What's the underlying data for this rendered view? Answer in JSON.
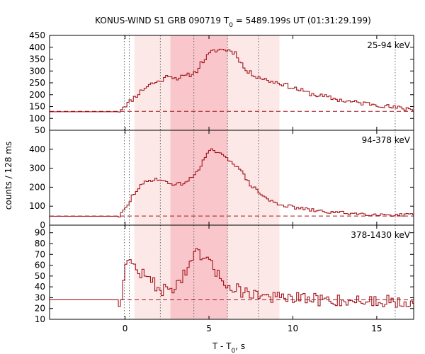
{
  "chart_data": {
    "type": "line",
    "title": "KONUS-WIND S1 GRB 090719 T",
    "title_sub": "0",
    "title_tail": " = 5489.199s UT (01:31:29.199)",
    "xlabel": "T - T",
    "xlabel_sub": "0",
    "xlabel_tail": ", s",
    "ylabel": "counts / 128 ms",
    "xlim": [
      -4.5,
      17.2
    ],
    "xticks": [
      0,
      5,
      10,
      15
    ],
    "bin_width_s": 0.128,
    "grid": false,
    "colors": {
      "line": "#a3141c",
      "background_dashed": "#a3141c",
      "shade_light": "#fde8e8",
      "shade_dark": "#f9c7cb",
      "vline": "#555555"
    },
    "shaded_intervals": [
      {
        "x": [
          0.55,
          9.2
        ],
        "level": "light"
      },
      {
        "x": [
          2.7,
          6.1
        ],
        "level": "dark"
      }
    ],
    "vertical_lines": [
      {
        "x": -0.05,
        "style": "dotted"
      },
      {
        "x": 0.25,
        "style": "dotted"
      },
      {
        "x": 2.1,
        "style": "dotted"
      },
      {
        "x": 4.1,
        "style": "dotted"
      },
      {
        "x": 6.1,
        "style": "dotted"
      },
      {
        "x": 7.95,
        "style": "dotted"
      },
      {
        "x": 16.1,
        "style": "dotted"
      }
    ],
    "panels": [
      {
        "name": "25-94 keV",
        "ylim": [
          50,
          450
        ],
        "yticks": [
          50,
          100,
          150,
          200,
          250,
          300,
          350,
          400,
          450
        ],
        "background": 130,
        "profile": [
          [
            -4.5,
            128
          ],
          [
            -0.4,
            128
          ],
          [
            -0.3,
            135
          ],
          [
            -0.1,
            150
          ],
          [
            0.2,
            165
          ],
          [
            0.5,
            185
          ],
          [
            0.8,
            205
          ],
          [
            1.1,
            225
          ],
          [
            1.5,
            245
          ],
          [
            2.0,
            255
          ],
          [
            2.4,
            270
          ],
          [
            2.6,
            285
          ],
          [
            3.0,
            270
          ],
          [
            3.5,
            275
          ],
          [
            3.9,
            285
          ],
          [
            4.1,
            290
          ],
          [
            4.3,
            305
          ],
          [
            4.5,
            330
          ],
          [
            4.7,
            345
          ],
          [
            5.0,
            370
          ],
          [
            5.3,
            385
          ],
          [
            5.6,
            390
          ],
          [
            6.0,
            390
          ],
          [
            6.3,
            385
          ],
          [
            6.6,
            375
          ],
          [
            7.2,
            300
          ],
          [
            7.8,
            280
          ],
          [
            8.5,
            260
          ],
          [
            9.2,
            250
          ],
          [
            10.0,
            230
          ],
          [
            11.0,
            205
          ],
          [
            12.0,
            190
          ],
          [
            13.0,
            175
          ],
          [
            14.0,
            165
          ],
          [
            15.0,
            160
          ],
          [
            16.0,
            145
          ],
          [
            17.2,
            140
          ]
        ],
        "noise": 10,
        "seed": 11
      },
      {
        "name": "94-378 keV",
        "ylim": [
          0,
          500
        ],
        "yticks": [
          0,
          100,
          200,
          300,
          400
        ],
        "background": 48,
        "profile": [
          [
            -4.5,
            47
          ],
          [
            -0.3,
            47
          ],
          [
            -0.1,
            75
          ],
          [
            0.2,
            105
          ],
          [
            0.4,
            150
          ],
          [
            0.8,
            195
          ],
          [
            1.2,
            225
          ],
          [
            1.6,
            240
          ],
          [
            2.0,
            245
          ],
          [
            2.4,
            225
          ],
          [
            3.0,
            215
          ],
          [
            3.5,
            220
          ],
          [
            4.0,
            250
          ],
          [
            4.4,
            300
          ],
          [
            4.8,
            360
          ],
          [
            5.1,
            395
          ],
          [
            5.4,
            390
          ],
          [
            5.8,
            365
          ],
          [
            6.3,
            340
          ],
          [
            6.8,
            300
          ],
          [
            7.4,
            220
          ],
          [
            8.0,
            170
          ],
          [
            8.6,
            130
          ],
          [
            9.2,
            110
          ],
          [
            10.0,
            95
          ],
          [
            11.0,
            80
          ],
          [
            12.0,
            70
          ],
          [
            13.0,
            65
          ],
          [
            14.0,
            60
          ],
          [
            15.0,
            57
          ],
          [
            16.0,
            55
          ],
          [
            17.2,
            50
          ]
        ],
        "noise": 9,
        "seed": 29
      },
      {
        "name": "378-1430 keV",
        "ylim": [
          10,
          97
        ],
        "yticks": [
          10,
          20,
          30,
          40,
          50,
          60,
          70,
          80,
          90
        ],
        "background": 28,
        "profile": [
          [
            -4.5,
            28
          ],
          [
            -0.4,
            28
          ],
          [
            -0.25,
            20
          ],
          [
            -0.1,
            50
          ],
          [
            0.0,
            62
          ],
          [
            0.3,
            62
          ],
          [
            0.6,
            58
          ],
          [
            1.0,
            52
          ],
          [
            1.5,
            46
          ],
          [
            2.0,
            40
          ],
          [
            2.5,
            35
          ],
          [
            3.0,
            42
          ],
          [
            3.5,
            50
          ],
          [
            4.0,
            62
          ],
          [
            4.3,
            72
          ],
          [
            4.7,
            66
          ],
          [
            5.2,
            58
          ],
          [
            5.8,
            48
          ],
          [
            6.2,
            40
          ],
          [
            6.6,
            38
          ],
          [
            7.0,
            36
          ],
          [
            7.6,
            34
          ],
          [
            8.2,
            32
          ],
          [
            9.0,
            30
          ],
          [
            10.0,
            29
          ],
          [
            12.0,
            28
          ],
          [
            14.0,
            27
          ],
          [
            17.2,
            27
          ]
        ],
        "noise": 6,
        "seed": 47
      }
    ]
  }
}
